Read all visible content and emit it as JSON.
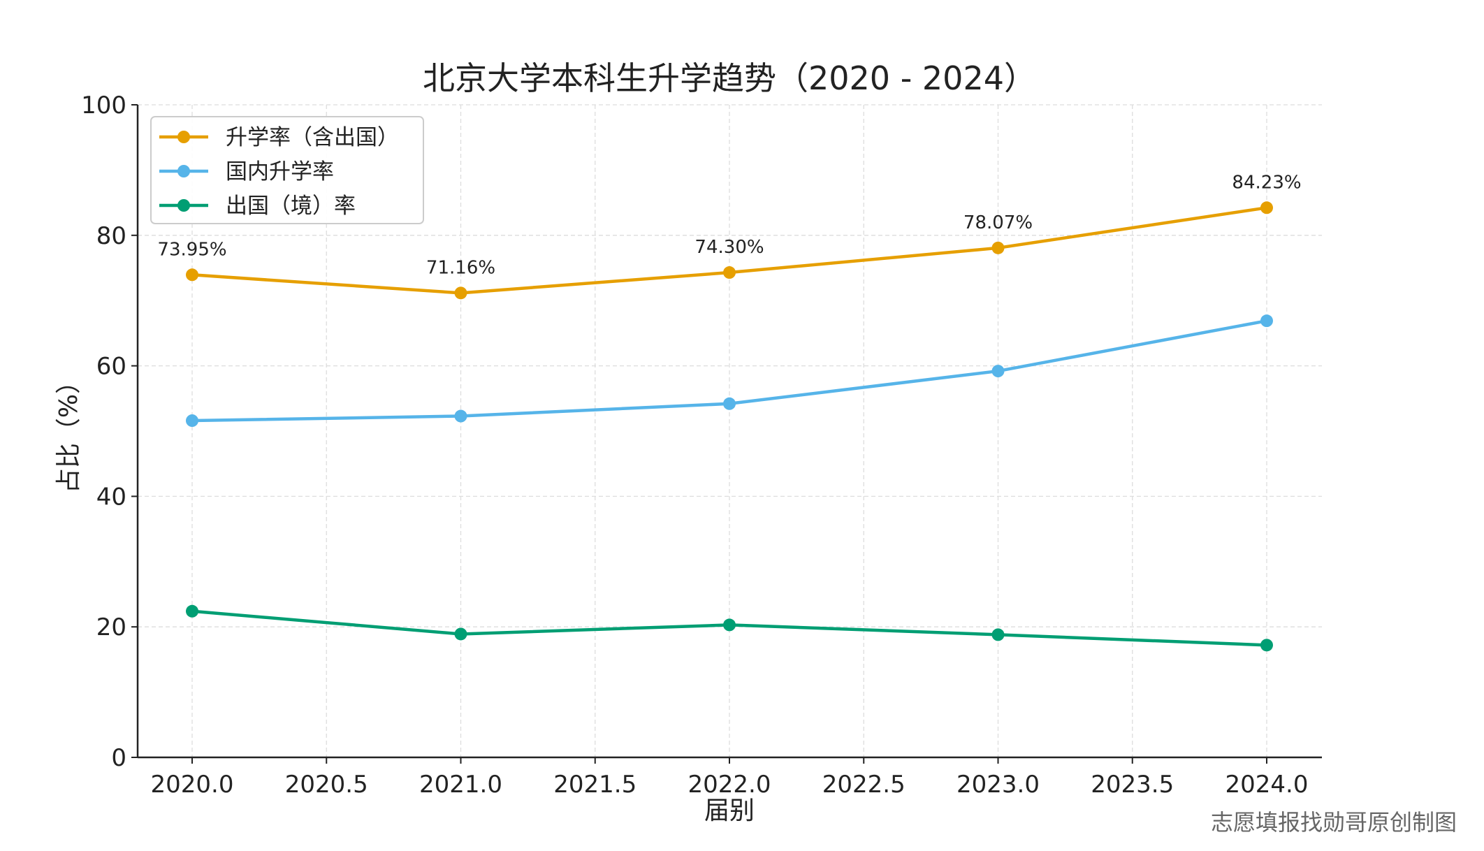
{
  "chart_data": {
    "type": "line",
    "title": "北京大学本科生升学趋势（2020 - 2024）",
    "xlabel": "届别",
    "ylabel": "占比（%）",
    "xlim": [
      2019.8,
      2024.2
    ],
    "ylim": [
      0,
      100
    ],
    "xticks": [
      2020.0,
      2020.5,
      2021.0,
      2021.5,
      2022.0,
      2022.5,
      2023.0,
      2023.5,
      2024.0
    ],
    "xtick_labels": [
      "2020.0",
      "2020.5",
      "2021.0",
      "2021.5",
      "2022.0",
      "2022.5",
      "2023.0",
      "2023.5",
      "2024.0"
    ],
    "yticks": [
      0,
      20,
      40,
      60,
      80,
      100
    ],
    "ytick_labels": [
      "0",
      "20",
      "40",
      "60",
      "80",
      "100"
    ],
    "grid": true,
    "legend_position": "top-left",
    "x": [
      2020,
      2021,
      2022,
      2023,
      2024
    ],
    "series": [
      {
        "name": "升学率（含出国）",
        "color": "#E69F00",
        "values": [
          73.95,
          71.16,
          74.3,
          78.07,
          84.23
        ],
        "data_labels": [
          "73.95%",
          "71.16%",
          "74.30%",
          "78.07%",
          "84.23%"
        ]
      },
      {
        "name": "国内升学率",
        "color": "#56B4E9",
        "values": [
          51.6,
          52.3,
          54.2,
          59.2,
          66.9
        ]
      },
      {
        "name": "出国（境）率",
        "color": "#009E73",
        "values": [
          22.4,
          18.9,
          20.3,
          18.8,
          17.2
        ]
      }
    ],
    "watermark": "志愿填报找勋哥原创制图"
  }
}
